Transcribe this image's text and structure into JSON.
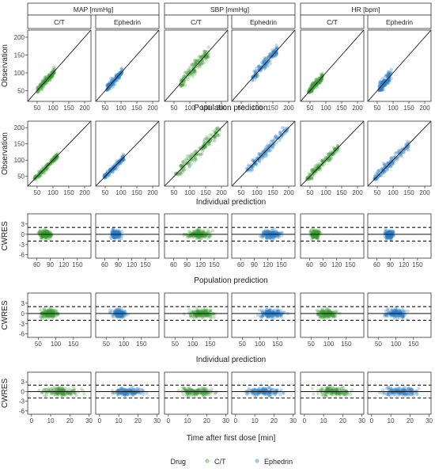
{
  "chart_data": {
    "type": "scatter",
    "layout": {
      "rows": 5,
      "columns": 6
    },
    "strip_top": [
      "MAP [mmHg]",
      "SBP [mmHg]",
      "HR [bpm]"
    ],
    "strip_sub": [
      "C/T",
      "Ephedrin",
      "C/T",
      "Ephedrin",
      "C/T",
      "Ephedrin"
    ],
    "legend": {
      "title": "Drug",
      "position": "bottom",
      "entries": [
        {
          "label": "C/T",
          "color": "#3a9a2e"
        },
        {
          "label": "Ephedrin",
          "color": "#2c7fc4"
        }
      ]
    },
    "rows": [
      {
        "ylabel": "Observation",
        "xlabel": "Population prediction",
        "xlim": [
          20,
          220
        ],
        "ylim": [
          20,
          220
        ],
        "xticks": [
          50,
          100,
          150,
          200
        ],
        "yticks": [
          50,
          100,
          150,
          200
        ],
        "reference": "identity",
        "clouds": [
          {
            "drug": "C/T",
            "x": [
              50,
              105
            ],
            "y": [
              45,
              135
            ]
          },
          {
            "drug": "Ephedrin",
            "x": [
              55,
              105
            ],
            "y": [
              50,
              140
            ]
          },
          {
            "drug": "C/T",
            "x": [
              70,
              160
            ],
            "y": [
              60,
              210
            ]
          },
          {
            "drug": "Ephedrin",
            "x": [
              85,
              165
            ],
            "y": [
              70,
              195
            ]
          },
          {
            "drug": "C/T",
            "x": [
              45,
              90
            ],
            "y": [
              45,
              140
            ]
          },
          {
            "drug": "Ephedrin",
            "x": [
              55,
              95
            ],
            "y": [
              50,
              175
            ]
          }
        ]
      },
      {
        "ylabel": "Observation",
        "xlabel": "Individual prediction",
        "xlim": [
          20,
          220
        ],
        "ylim": [
          20,
          220
        ],
        "xticks": [
          50,
          100,
          150,
          200
        ],
        "yticks": [
          50,
          100,
          150,
          200
        ],
        "reference": "identity",
        "clouds": [
          {
            "drug": "C/T",
            "x": [
              40,
              115
            ],
            "y": [
              40,
              125
            ]
          },
          {
            "drug": "Ephedrin",
            "x": [
              45,
              110
            ],
            "y": [
              45,
              120
            ]
          },
          {
            "drug": "C/T",
            "x": [
              55,
              195
            ],
            "y": [
              55,
              200
            ]
          },
          {
            "drug": "Ephedrin",
            "x": [
              65,
              200
            ],
            "y": [
              65,
              200
            ]
          },
          {
            "drug": "C/T",
            "x": [
              40,
              140
            ],
            "y": [
              40,
              150
            ]
          },
          {
            "drug": "Ephedrin",
            "x": [
              40,
              150
            ],
            "y": [
              40,
              165
            ]
          }
        ]
      },
      {
        "ylabel": "CWRES",
        "xlabel": "Population prediction",
        "xlim": [
          40,
          180
        ],
        "ylim": [
          -7,
          6
        ],
        "xticks": [
          60,
          90,
          120,
          150
        ],
        "yticks": [
          -6,
          -3,
          0,
          3
        ],
        "reference": "cwres",
        "clouds": [
          {
            "drug": "C/T",
            "x": [
              55,
              105
            ],
            "y": [
              -5,
              5
            ]
          },
          {
            "drug": "Ephedrin",
            "x": [
              65,
              105
            ],
            "y": [
              -4.5,
              4
            ]
          },
          {
            "drug": "C/T",
            "x": [
              70,
              160
            ],
            "y": [
              -5,
              4
            ]
          },
          {
            "drug": "Ephedrin",
            "x": [
              90,
              165
            ],
            "y": [
              -4.5,
              4.5
            ]
          },
          {
            "drug": "C/T",
            "x": [
              55,
              90
            ],
            "y": [
              -5.5,
              4.5
            ]
          },
          {
            "drug": "Ephedrin",
            "x": [
              70,
              105
            ],
            "y": [
              -5,
              4
            ]
          }
        ]
      },
      {
        "ylabel": "CWRES",
        "xlabel": "Individual prediction",
        "xlim": [
          20,
          200
        ],
        "ylim": [
          -7,
          6
        ],
        "xticks": [
          50,
          100,
          150
        ],
        "yticks": [
          -6,
          -3,
          0,
          3
        ],
        "reference": "cwres",
        "clouds": [
          {
            "drug": "C/T",
            "x": [
              40,
              125
            ],
            "y": [
              -5,
              5
            ]
          },
          {
            "drug": "Ephedrin",
            "x": [
              50,
              120
            ],
            "y": [
              -5,
              4.5
            ]
          },
          {
            "drug": "C/T",
            "x": [
              60,
              190
            ],
            "y": [
              -5,
              4.5
            ]
          },
          {
            "drug": "Ephedrin",
            "x": [
              70,
              195
            ],
            "y": [
              -5,
              4.5
            ]
          },
          {
            "drug": "C/T",
            "x": [
              45,
              145
            ],
            "y": [
              -5.5,
              4.5
            ]
          },
          {
            "drug": "Ephedrin",
            "x": [
              50,
              150
            ],
            "y": [
              -5,
              4.5
            ]
          }
        ]
      },
      {
        "ylabel": "CWRES",
        "xlabel": "Time after first dose [min]",
        "xlim": [
          -2,
          31
        ],
        "ylim": [
          -7,
          6
        ],
        "xticks": [
          0,
          10,
          20,
          30
        ],
        "yticks": [
          -6,
          -3,
          0,
          3
        ],
        "reference": "cwres",
        "clouds": [
          {
            "drug": "C/T",
            "x": [
              0,
              30
            ],
            "y": [
              -5,
              5
            ]
          },
          {
            "drug": "Ephedrin",
            "x": [
              0,
              30
            ],
            "y": [
              -5,
              4
            ]
          },
          {
            "drug": "C/T",
            "x": [
              0,
              30
            ],
            "y": [
              -5.5,
              5
            ]
          },
          {
            "drug": "Ephedrin",
            "x": [
              0,
              30
            ],
            "y": [
              -5,
              4
            ]
          },
          {
            "drug": "C/T",
            "x": [
              0,
              30
            ],
            "y": [
              -5.5,
              4.5
            ]
          },
          {
            "drug": "Ephedrin",
            "x": [
              0,
              30
            ],
            "y": [
              -5,
              4.5
            ]
          }
        ]
      }
    ],
    "reference_lines": {
      "identity": "y = x",
      "cwres": [
        -2,
        0,
        2
      ]
    }
  }
}
